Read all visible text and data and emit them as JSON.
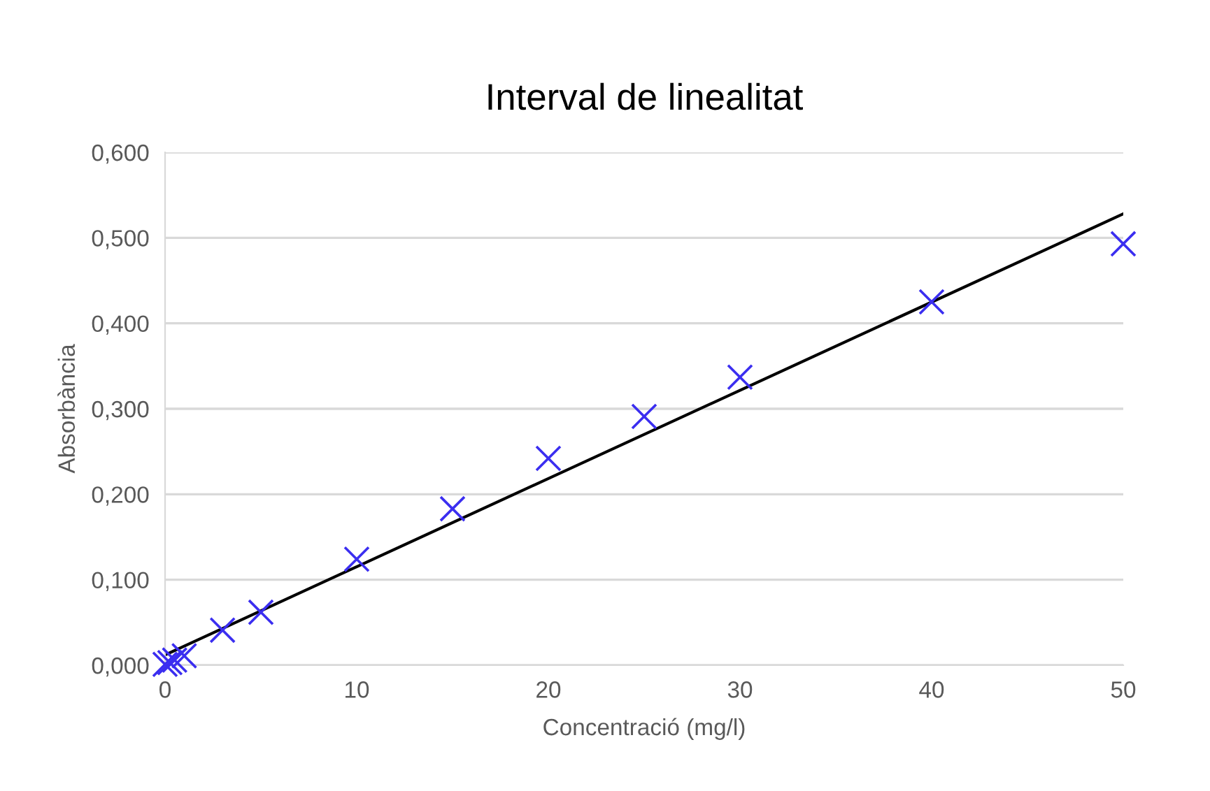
{
  "chart_data": {
    "type": "scatter",
    "title": "Interval de linealitat",
    "xlabel": "Concentració (mg/l)",
    "ylabel": "Absorbància",
    "xlim": [
      0,
      50
    ],
    "xticks": [
      0,
      10,
      20,
      30,
      40,
      50
    ],
    "ylim": [
      0,
      0.6
    ],
    "yticks": [
      {
        "value": 0,
        "label": "0,000"
      },
      {
        "value": 0.1,
        "label": "0,100"
      },
      {
        "value": 0.2,
        "label": "0,200"
      },
      {
        "value": 0.3,
        "label": "0,300"
      },
      {
        "value": 0.4,
        "label": "0,400"
      },
      {
        "value": 0.5,
        "label": "0,500"
      },
      {
        "value": 0.6,
        "label": "0,600"
      }
    ],
    "grid": "y",
    "legend": false,
    "series": [
      {
        "color": "#3b2ef0",
        "marker": "cross",
        "x": [
          0,
          0.25,
          0.5,
          1,
          3,
          5,
          10,
          15,
          20,
          25,
          30,
          40,
          50
        ],
        "values": [
          0.001,
          0.003,
          0.006,
          0.011,
          0.041,
          0.062,
          0.124,
          0.183,
          0.242,
          0.291,
          0.337,
          0.425,
          0.493
        ]
      },
      {
        "type": "line",
        "color": "#000000",
        "marker": "none",
        "line_style": "solid",
        "x": [
          0,
          50
        ],
        "values": [
          0.012,
          0.528
        ]
      }
    ]
  }
}
